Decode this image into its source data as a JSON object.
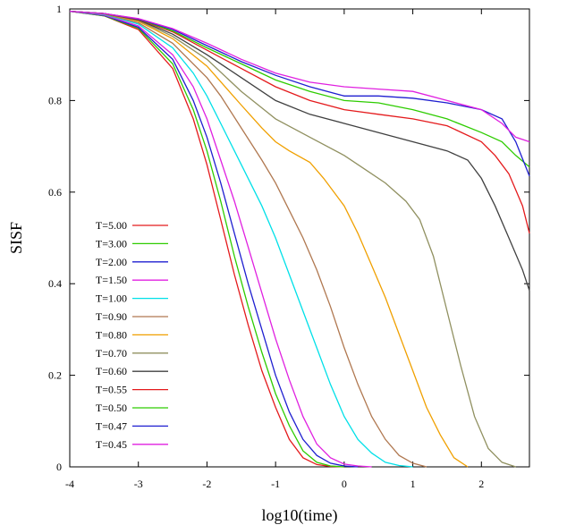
{
  "chart_data": {
    "type": "line",
    "title": "",
    "xlabel": "log10(time)",
    "ylabel": "SISF",
    "xlim": [
      -4,
      2.7
    ],
    "ylim": [
      0,
      1
    ],
    "xticks": [
      -4,
      -3,
      -2,
      -1,
      0,
      1,
      2
    ],
    "xtick_labels": [
      "-4",
      "-3",
      "-2",
      "-1",
      "0",
      "1",
      "2"
    ],
    "yticks": [
      0,
      0.2,
      0.4,
      0.6,
      0.8,
      1
    ],
    "ytick_labels": [
      "0",
      "0.2",
      "0.4",
      "0.6",
      "0.8",
      "1"
    ],
    "grid": false,
    "legend_position": "lower-left",
    "series": [
      {
        "name": "T=5.00",
        "color": "#e41a1c",
        "x": [
          -4,
          -3.5,
          -3,
          -2.5,
          -2.2,
          -2,
          -1.8,
          -1.6,
          -1.4,
          -1.2,
          -1,
          -0.8,
          -0.6,
          -0.4,
          -0.2,
          0
        ],
        "y": [
          0.995,
          0.985,
          0.955,
          0.87,
          0.76,
          0.66,
          0.54,
          0.42,
          0.31,
          0.21,
          0.13,
          0.06,
          0.02,
          0.005,
          0.001,
          0
        ]
      },
      {
        "name": "T=3.00",
        "color": "#2ecc00",
        "x": [
          -4,
          -3.5,
          -3,
          -2.5,
          -2.2,
          -2,
          -1.8,
          -1.6,
          -1.4,
          -1.2,
          -1,
          -0.8,
          -0.6,
          -0.4,
          -0.2,
          0
        ],
        "y": [
          0.995,
          0.985,
          0.958,
          0.88,
          0.78,
          0.69,
          0.58,
          0.46,
          0.35,
          0.25,
          0.16,
          0.09,
          0.035,
          0.01,
          0.002,
          0
        ]
      },
      {
        "name": "T=2.00",
        "color": "#1f1fd0",
        "x": [
          -4,
          -3.5,
          -3,
          -2.5,
          -2.2,
          -2,
          -1.8,
          -1.6,
          -1.4,
          -1.2,
          -1,
          -0.8,
          -0.6,
          -0.4,
          -0.2,
          0,
          0.2
        ],
        "y": [
          0.995,
          0.986,
          0.96,
          0.89,
          0.8,
          0.72,
          0.62,
          0.51,
          0.4,
          0.3,
          0.2,
          0.12,
          0.06,
          0.025,
          0.008,
          0.002,
          0
        ]
      },
      {
        "name": "T=1.50",
        "color": "#e020e0",
        "x": [
          -4,
          -3.5,
          -3,
          -2.5,
          -2.2,
          -2,
          -1.8,
          -1.6,
          -1.4,
          -1.2,
          -1,
          -0.8,
          -0.6,
          -0.4,
          -0.2,
          0,
          0.2,
          0.4
        ],
        "y": [
          0.995,
          0.987,
          0.963,
          0.9,
          0.83,
          0.76,
          0.67,
          0.58,
          0.48,
          0.38,
          0.28,
          0.19,
          0.11,
          0.05,
          0.02,
          0.006,
          0.002,
          0
        ]
      },
      {
        "name": "T=1.00",
        "color": "#00e0e8",
        "x": [
          -4,
          -3.5,
          -3,
          -2.5,
          -2.2,
          -2,
          -1.8,
          -1.5,
          -1.2,
          -1,
          -0.8,
          -0.6,
          -0.4,
          -0.2,
          0,
          0.2,
          0.4,
          0.6,
          0.8,
          1
        ],
        "y": [
          0.995,
          0.988,
          0.967,
          0.915,
          0.86,
          0.81,
          0.75,
          0.66,
          0.57,
          0.5,
          0.42,
          0.34,
          0.26,
          0.18,
          0.11,
          0.06,
          0.03,
          0.01,
          0.003,
          0
        ]
      },
      {
        "name": "T=0.90",
        "color": "#b07850",
        "x": [
          -4,
          -3.5,
          -3,
          -2.5,
          -2,
          -1.8,
          -1.5,
          -1.2,
          -1,
          -0.8,
          -0.6,
          -0.4,
          -0.2,
          0,
          0.2,
          0.4,
          0.6,
          0.8,
          1,
          1.2
        ],
        "y": [
          0.995,
          0.989,
          0.97,
          0.925,
          0.85,
          0.81,
          0.74,
          0.67,
          0.62,
          0.56,
          0.5,
          0.43,
          0.35,
          0.26,
          0.18,
          0.11,
          0.06,
          0.025,
          0.008,
          0
        ]
      },
      {
        "name": "T=0.80",
        "color": "#f0a000",
        "x": [
          -4,
          -3.5,
          -3,
          -2.5,
          -2,
          -1.5,
          -1.2,
          -1,
          -0.8,
          -0.5,
          -0.3,
          0,
          0.2,
          0.4,
          0.6,
          0.8,
          1,
          1.2,
          1.4,
          1.6,
          1.8
        ],
        "y": [
          0.995,
          0.99,
          0.973,
          0.935,
          0.875,
          0.79,
          0.74,
          0.71,
          0.69,
          0.665,
          0.63,
          0.57,
          0.51,
          0.44,
          0.37,
          0.29,
          0.21,
          0.13,
          0.07,
          0.02,
          0
        ]
      },
      {
        "name": "T=0.70",
        "color": "#909060",
        "x": [
          -4,
          -3.5,
          -3,
          -2.5,
          -2,
          -1.5,
          -1,
          -0.5,
          0,
          0.3,
          0.6,
          0.9,
          1.1,
          1.3,
          1.5,
          1.7,
          1.9,
          2.1,
          2.3,
          2.5
        ],
        "y": [
          0.995,
          0.99,
          0.975,
          0.94,
          0.89,
          0.82,
          0.76,
          0.72,
          0.68,
          0.65,
          0.62,
          0.58,
          0.54,
          0.46,
          0.34,
          0.22,
          0.11,
          0.04,
          0.01,
          0
        ]
      },
      {
        "name": "T=0.60",
        "color": "#404040",
        "x": [
          -4,
          -3.5,
          -3,
          -2.5,
          -2,
          -1.5,
          -1,
          -0.5,
          0,
          0.5,
          1,
          1.5,
          1.8,
          2,
          2.2,
          2.4,
          2.6,
          2.7
        ],
        "y": [
          0.995,
          0.99,
          0.976,
          0.945,
          0.9,
          0.85,
          0.8,
          0.77,
          0.75,
          0.73,
          0.71,
          0.69,
          0.67,
          0.63,
          0.57,
          0.5,
          0.43,
          0.385
        ]
      },
      {
        "name": "T=0.55",
        "color": "#e41a1c",
        "x": [
          -4,
          -3.5,
          -3,
          -2.5,
          -2,
          -1.5,
          -1,
          -0.5,
          0,
          0.5,
          1,
          1.5,
          2,
          2.2,
          2.4,
          2.6,
          2.7
        ],
        "y": [
          0.995,
          0.99,
          0.977,
          0.95,
          0.91,
          0.87,
          0.83,
          0.8,
          0.78,
          0.77,
          0.76,
          0.745,
          0.71,
          0.68,
          0.64,
          0.57,
          0.51
        ]
      },
      {
        "name": "T=0.50",
        "color": "#2ecc00",
        "x": [
          -4,
          -3.5,
          -3,
          -2.5,
          -2,
          -1.5,
          -1,
          -0.5,
          0,
          0.5,
          1,
          1.5,
          2,
          2.3,
          2.5,
          2.7
        ],
        "y": [
          0.995,
          0.99,
          0.978,
          0.952,
          0.915,
          0.88,
          0.845,
          0.82,
          0.8,
          0.795,
          0.78,
          0.76,
          0.73,
          0.71,
          0.68,
          0.655
        ]
      },
      {
        "name": "T=0.47",
        "color": "#1f1fd0",
        "x": [
          -4,
          -3.5,
          -3,
          -2.5,
          -2,
          -1.5,
          -1,
          -0.5,
          0,
          0.5,
          1,
          1.5,
          2,
          2.3,
          2.5,
          2.7
        ],
        "y": [
          0.995,
          0.99,
          0.978,
          0.955,
          0.92,
          0.885,
          0.855,
          0.83,
          0.81,
          0.81,
          0.805,
          0.795,
          0.78,
          0.76,
          0.71,
          0.635
        ]
      },
      {
        "name": "T=0.45",
        "color": "#e020e0",
        "x": [
          -4,
          -3.5,
          -3,
          -2.5,
          -2,
          -1.5,
          -1,
          -0.5,
          0,
          0.5,
          1,
          1.5,
          2,
          2.3,
          2.5,
          2.7
        ],
        "y": [
          0.995,
          0.99,
          0.979,
          0.957,
          0.925,
          0.89,
          0.86,
          0.84,
          0.83,
          0.825,
          0.82,
          0.8,
          0.78,
          0.75,
          0.72,
          0.71
        ]
      }
    ]
  }
}
